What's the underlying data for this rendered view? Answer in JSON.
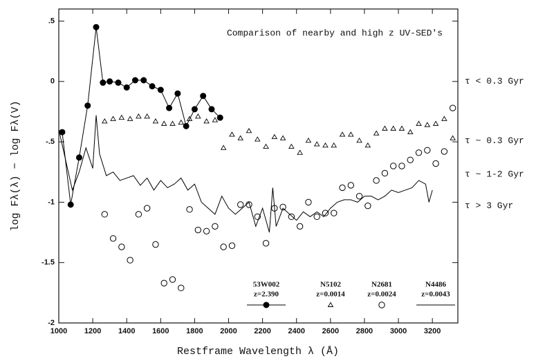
{
  "chart_data": {
    "type": "scatter",
    "title": "Comparison of nearby and high z UV-SED's",
    "x_label": "Restframe Wavelength λ  (Å)",
    "y_label": "log Fλ(λ)  − log Fλ(V)",
    "xlim": [
      1000,
      3350
    ],
    "xticks": [
      1000,
      1200,
      1400,
      1600,
      1800,
      2000,
      2200,
      2400,
      2600,
      2800,
      3000,
      3200
    ],
    "ylim": [
      -2,
      0.6
    ],
    "yticks": [
      -2,
      -1.5,
      -1,
      {
        "value": -0.5,
        "label": "-.5"
      },
      0,
      {
        "value": 0.5,
        "label": ".5"
      }
    ],
    "annotations": [
      {
        "text": "τ < 0.3 Gyr",
        "y": 0
      },
      {
        "text": "τ ~ 0.3 Gyr",
        "y": -0.49
      },
      {
        "text": "τ ~ 1-2 Gyr",
        "y": -0.77
      },
      {
        "text": "τ > 3 Gyr",
        "y": -1.03
      }
    ],
    "series": [
      {
        "name": "53W002",
        "redshift": "z=2.390",
        "marker": "filled-circle-line",
        "color": "#000000",
        "x": [
          1020,
          1070,
          1120,
          1170,
          1220,
          1260,
          1300,
          1350,
          1400,
          1450,
          1500,
          1550,
          1600,
          1650,
          1700,
          1750,
          1800,
          1850,
          1900,
          1950
        ],
        "values": [
          -0.42,
          -1.02,
          -0.63,
          -0.2,
          0.45,
          -0.01,
          0,
          -0.01,
          -0.05,
          0.01,
          0.01,
          -0.04,
          -0.07,
          -0.22,
          -0.1,
          -0.37,
          -0.23,
          -0.12,
          -0.23,
          -0.3
        ]
      },
      {
        "name": "N5102",
        "redshift": "z=0.0014",
        "marker": "triangle",
        "color": "#000000",
        "x": [
          1270,
          1320,
          1370,
          1420,
          1470,
          1520,
          1570,
          1620,
          1670,
          1720,
          1770,
          1820,
          1870,
          1920,
          1970,
          2020,
          2070,
          2120,
          2170,
          2220,
          2270,
          2320,
          2370,
          2420,
          2470,
          2520,
          2570,
          2620,
          2670,
          2720,
          2770,
          2820,
          2870,
          2920,
          2970,
          3020,
          3070,
          3120,
          3170,
          3220,
          3270,
          3320
        ],
        "values": [
          -0.33,
          -0.31,
          -0.3,
          -0.31,
          -0.29,
          -0.29,
          -0.33,
          -0.35,
          -0.35,
          -0.34,
          -0.31,
          -0.29,
          -0.33,
          -0.32,
          -0.55,
          -0.44,
          -0.47,
          -0.41,
          -0.48,
          -0.54,
          -0.46,
          -0.47,
          -0.54,
          -0.59,
          -0.49,
          -0.52,
          -0.53,
          -0.53,
          -0.44,
          -0.44,
          -0.49,
          -0.53,
          -0.43,
          -0.39,
          -0.39,
          -0.39,
          -0.42,
          -0.35,
          -0.36,
          -0.35,
          -0.31,
          -0.47
        ]
      },
      {
        "name": "N2681",
        "redshift": "z=0.0024",
        "marker": "open-circle",
        "color": "#000000",
        "x": [
          1270,
          1320,
          1370,
          1420,
          1470,
          1520,
          1570,
          1620,
          1670,
          1720,
          1770,
          1820,
          1870,
          1920,
          1970,
          2020,
          2070,
          2120,
          2170,
          2220,
          2270,
          2320,
          2370,
          2420,
          2470,
          2520,
          2570,
          2620,
          2670,
          2720,
          2770,
          2820,
          2870,
          2920,
          2970,
          3020,
          3070,
          3120,
          3170,
          3220,
          3270,
          3320
        ],
        "values": [
          -1.1,
          -1.3,
          -1.37,
          -1.48,
          -1.1,
          -1.05,
          -1.35,
          -1.67,
          -1.64,
          -1.71,
          -1.06,
          -1.23,
          -1.24,
          -1.2,
          -1.37,
          -1.36,
          -1.02,
          -1.02,
          -1.12,
          -1.34,
          -1.05,
          -1.04,
          -1.12,
          -1.2,
          -1.0,
          -1.12,
          -1.09,
          -1.09,
          -0.88,
          -0.86,
          -0.95,
          -1.03,
          -0.82,
          -0.76,
          -0.7,
          -0.7,
          -0.65,
          -0.59,
          -0.57,
          -0.68,
          -0.58,
          -0.22
        ]
      },
      {
        "name": "N4486",
        "redshift": "z=0.0043",
        "marker": "line",
        "color": "#000000",
        "x": [
          1000,
          1040,
          1080,
          1120,
          1160,
          1200,
          1220,
          1240,
          1280,
          1320,
          1360,
          1400,
          1440,
          1480,
          1520,
          1560,
          1600,
          1640,
          1680,
          1720,
          1760,
          1800,
          1840,
          1880,
          1920,
          1960,
          2000,
          2040,
          2080,
          2120,
          2160,
          2200,
          2240,
          2260,
          2280,
          2320,
          2360,
          2400,
          2440,
          2480,
          2520,
          2560,
          2600,
          2640,
          2680,
          2720,
          2760,
          2800,
          2840,
          2880,
          2920,
          2960,
          3000,
          3040,
          3080,
          3120,
          3160,
          3180,
          3200
        ],
        "values": [
          -0.4,
          -0.65,
          -0.9,
          -0.75,
          -0.55,
          -0.72,
          -0.28,
          -0.6,
          -0.78,
          -0.75,
          -0.82,
          -0.8,
          -0.78,
          -0.86,
          -0.8,
          -0.9,
          -0.82,
          -0.88,
          -0.85,
          -0.8,
          -0.9,
          -0.85,
          -1.0,
          -1.05,
          -1.1,
          -0.95,
          -1.05,
          -1.1,
          -1.05,
          -1.0,
          -1.2,
          -1.05,
          -1.25,
          -0.88,
          -1.2,
          -1.05,
          -1.1,
          -1.15,
          -1.08,
          -1.12,
          -1.08,
          -1.12,
          -1.05,
          -1.0,
          -0.98,
          -0.98,
          -1.0,
          -0.95,
          -0.95,
          -0.98,
          -0.95,
          -0.9,
          -0.92,
          -0.9,
          -0.88,
          -0.82,
          -0.85,
          -1.0,
          -0.9
        ]
      }
    ]
  }
}
